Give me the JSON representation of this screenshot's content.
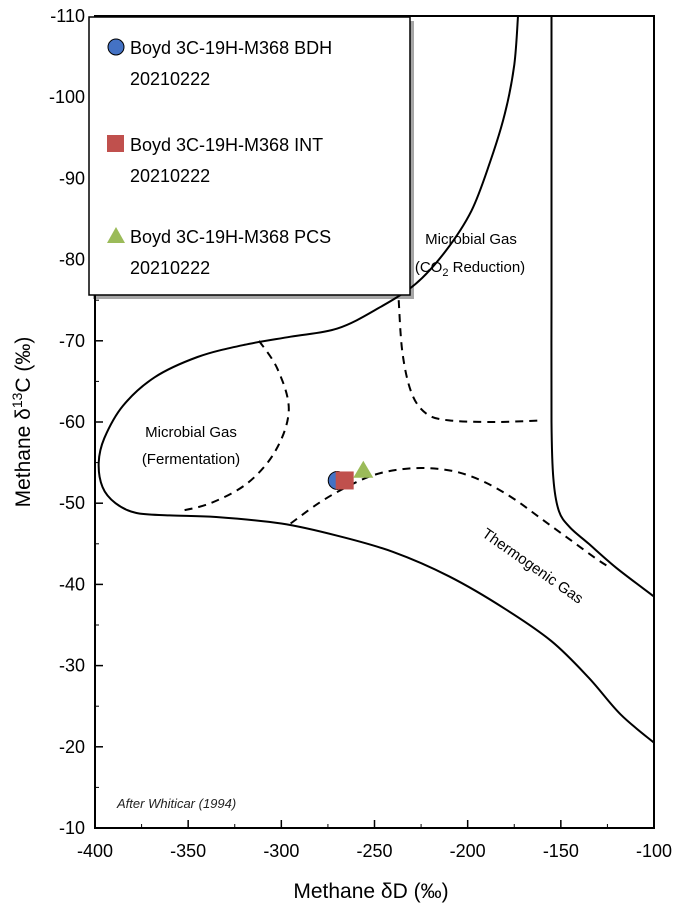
{
  "chart_data": {
    "type": "scatter",
    "title": "",
    "xlabel": "Methane δD (‰)",
    "ylabel_prefix": "Methane δ",
    "ylabel_sup": "13",
    "ylabel_suffix": "C (‰)",
    "xlim": [
      -400,
      -100
    ],
    "ylim": [
      -110,
      -10
    ],
    "y_reversed": true,
    "x_ticks": [
      -400,
      -350,
      -300,
      -250,
      -200,
      -150,
      -100
    ],
    "y_ticks": [
      -110,
      -100,
      -90,
      -80,
      -70,
      -60,
      -50,
      -40,
      -30,
      -20,
      -10
    ],
    "grid": false,
    "legend_position": "top-left",
    "series": [
      {
        "name": "Boyd 3C-19H-M368 BDH",
        "name_line2": "20210222",
        "marker": "circle",
        "color": "#4472C4",
        "points": [
          {
            "x": -270,
            "y": -52.8
          }
        ]
      },
      {
        "name": "Boyd 3C-19H-M368 INT",
        "name_line2": "20210222",
        "marker": "square",
        "color": "#C0504D",
        "points": [
          {
            "x": -266,
            "y": -52.8
          }
        ]
      },
      {
        "name": "Boyd 3C-19H-M368 PCS",
        "name_line2": "20210222",
        "marker": "triangle",
        "color": "#9BBB59",
        "points": [
          {
            "x": -256,
            "y": -54.0
          }
        ]
      }
    ],
    "region_labels": {
      "fermentation_line1": "Microbial Gas",
      "fermentation_line2": "(Fermentation)",
      "co2_line1": "Microbial Gas",
      "co2_line2_a": "(CO",
      "co2_line2_sub": "2",
      "co2_line2_b": " Reduction)",
      "thermogenic": "Thermogenic Gas"
    },
    "credit": "After Whiticar (1994)",
    "boundaries": [
      {
        "style": "solid",
        "points": [
          [
            -173,
            -110
          ],
          [
            -175,
            -104
          ],
          [
            -180,
            -98
          ],
          [
            -188,
            -92
          ],
          [
            -198,
            -86
          ],
          [
            -212,
            -81
          ],
          [
            -228,
            -77
          ],
          [
            -248,
            -74
          ],
          [
            -270,
            -71.5
          ],
          [
            -295,
            -70.5
          ],
          [
            -320,
            -69.5
          ],
          [
            -345,
            -68
          ],
          [
            -368,
            -65.5
          ],
          [
            -385,
            -62
          ],
          [
            -395,
            -58
          ],
          [
            -398,
            -55
          ],
          [
            -396,
            -52
          ],
          [
            -389,
            -50
          ],
          [
            -378,
            -48.8
          ],
          [
            -360,
            -48.5
          ],
          [
            -335,
            -48.3
          ],
          [
            -300,
            -47.5
          ],
          [
            -270,
            -46
          ],
          [
            -240,
            -44
          ],
          [
            -210,
            -41
          ],
          [
            -180,
            -37
          ],
          [
            -155,
            -33
          ],
          [
            -135,
            -28.5
          ],
          [
            -118,
            -24
          ],
          [
            -100,
            -20.5
          ]
        ]
      },
      {
        "style": "solid",
        "points": [
          [
            -155,
            -110
          ],
          [
            -155,
            -90
          ],
          [
            -155,
            -75
          ],
          [
            -155,
            -60
          ],
          [
            -154,
            -53
          ],
          [
            -151,
            -49
          ],
          [
            -145,
            -47
          ],
          [
            -135,
            -45
          ],
          [
            -120,
            -42
          ],
          [
            -100,
            -38.5
          ]
        ]
      },
      {
        "style": "dashed",
        "points": [
          [
            -312,
            -70
          ],
          [
            -302,
            -66.5
          ],
          [
            -296,
            -61.5
          ],
          [
            -303,
            -56.5
          ],
          [
            -318,
            -52.5
          ],
          [
            -338,
            -50
          ],
          [
            -355,
            -49
          ]
        ]
      },
      {
        "style": "dashed",
        "points": [
          [
            -237,
            -75
          ],
          [
            -235,
            -68.5
          ],
          [
            -230,
            -63.5
          ],
          [
            -222,
            -61
          ],
          [
            -210,
            -60.2
          ],
          [
            -185,
            -60
          ],
          [
            -160,
            -60.2
          ]
        ]
      },
      {
        "style": "dashed",
        "points": [
          [
            -295,
            -47.5
          ],
          [
            -280,
            -50
          ],
          [
            -265,
            -52
          ],
          [
            -250,
            -53.5
          ],
          [
            -235,
            -54.2
          ],
          [
            -220,
            -54.3
          ],
          [
            -205,
            -53.8
          ],
          [
            -190,
            -52.5
          ],
          [
            -175,
            -50.5
          ],
          [
            -160,
            -48
          ],
          [
            -145,
            -45.5
          ],
          [
            -130,
            -43
          ],
          [
            -123,
            -42
          ]
        ]
      }
    ]
  }
}
